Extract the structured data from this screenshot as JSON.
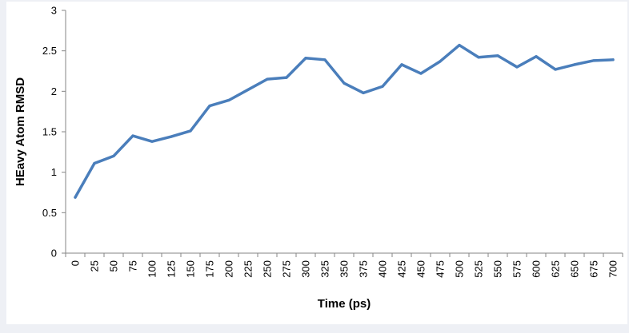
{
  "chart_data": {
    "type": "line",
    "title": "",
    "xlabel": "Time (ps)",
    "ylabel": "HEavy Atom RMSD",
    "ylim": [
      0,
      3
    ],
    "yticks": [
      "0",
      "0.5",
      "1",
      "1.5",
      "2",
      "2.5",
      "3"
    ],
    "grid": false,
    "legend": "none",
    "line_color": "#4a7ebb",
    "categories": [
      "0",
      "25",
      "50",
      "75",
      "100",
      "125",
      "150",
      "175",
      "200",
      "225",
      "250",
      "275",
      "300",
      "325",
      "350",
      "375",
      "400",
      "425",
      "450",
      "475",
      "500",
      "525",
      "550",
      "575",
      "600",
      "625",
      "650",
      "675",
      "700"
    ],
    "series": [
      {
        "values": [
          0.69,
          1.11,
          1.2,
          1.45,
          1.38,
          1.44,
          1.51,
          1.82,
          1.89,
          2.02,
          2.15,
          2.17,
          2.41,
          2.39,
          2.1,
          1.98,
          2.06,
          2.33,
          2.22,
          2.37,
          2.57,
          2.42,
          2.44,
          2.3,
          2.43,
          2.27,
          2.33,
          2.38,
          2.39
        ]
      }
    ]
  }
}
